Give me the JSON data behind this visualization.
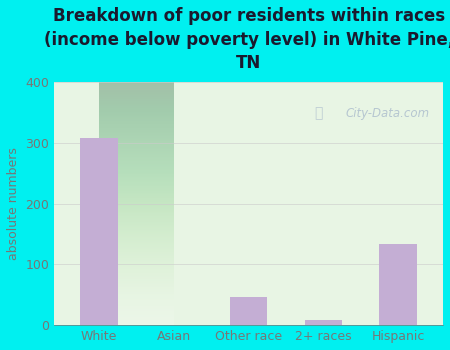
{
  "title": "Breakdown of poor residents within races\n(income below poverty level) in White Pine,\nTN",
  "categories": [
    "White",
    "Asian",
    "Other race",
    "2+ races",
    "Hispanic"
  ],
  "values": [
    308,
    0,
    47,
    8,
    133
  ],
  "bar_color": "#c4aed4",
  "ylabel": "absolute numbers",
  "ylim": [
    0,
    400
  ],
  "yticks": [
    0,
    100,
    200,
    300,
    400
  ],
  "background_color": "#00f0f0",
  "plot_bg_color": "#e8f5e4",
  "title_color": "#1a1a2e",
  "tick_color": "#777777",
  "grid_color": "#cccccc",
  "watermark": "City-Data.com",
  "watermark_color": "#aabbcc"
}
